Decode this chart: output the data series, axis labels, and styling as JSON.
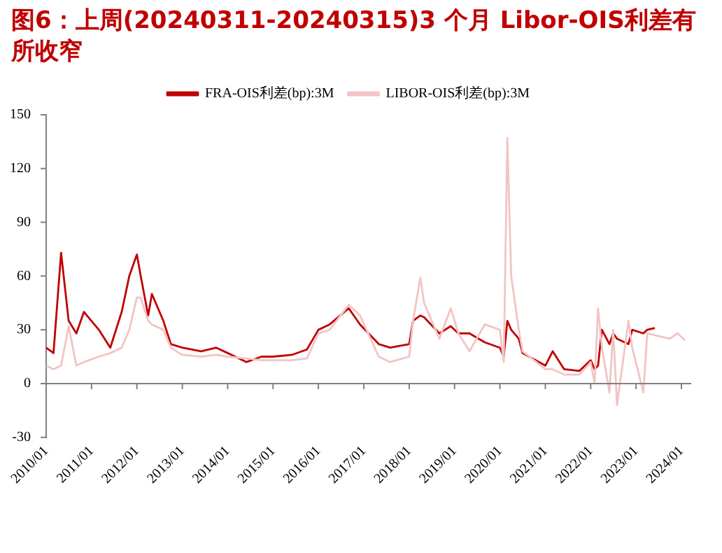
{
  "chart_data": {
    "type": "line",
    "title": "图6：上周(20240311-20240315)3 个月 Libor-OIS利差有所收窄",
    "ylim": [
      -30,
      150
    ],
    "yticks": [
      -30,
      0,
      30,
      60,
      90,
      120,
      150
    ],
    "xlim": [
      "2010-01-01",
      "2024-03-20"
    ],
    "xticks": [
      {
        "value": "2010-01-01",
        "label": "2010/01"
      },
      {
        "value": "2011-01-01",
        "label": "2011/01"
      },
      {
        "value": "2012-01-01",
        "label": "2012/01"
      },
      {
        "value": "2013-01-01",
        "label": "2013/01"
      },
      {
        "value": "2014-01-01",
        "label": "2014/01"
      },
      {
        "value": "2015-01-01",
        "label": "2015/01"
      },
      {
        "value": "2016-01-01",
        "label": "2016/01"
      },
      {
        "value": "2017-01-01",
        "label": "2017/01"
      },
      {
        "value": "2018-01-01",
        "label": "2018/01"
      },
      {
        "value": "2019-01-01",
        "label": "2019/01"
      },
      {
        "value": "2020-01-01",
        "label": "2020/01"
      },
      {
        "value": "2021-01-01",
        "label": "2021/01"
      },
      {
        "value": "2022-01-01",
        "label": "2022/01"
      },
      {
        "value": "2023-01-01",
        "label": "2023/01"
      },
      {
        "value": "2024-01-01",
        "label": "2024/01"
      }
    ],
    "ref_lines": [
      {
        "axis": "y",
        "value": 0
      }
    ],
    "grid": false,
    "legend": "top",
    "marker": "none",
    "line_style": "solid",
    "series": [
      {
        "name": "FRA-OIS利差(bp):3M",
        "color": "#c00000",
        "x": [
          "2010-01",
          "2010-03",
          "2010-05",
          "2010-07",
          "2010-09",
          "2010-11",
          "2011-03",
          "2011-06",
          "2011-09",
          "2011-11",
          "2012-01",
          "2012-02",
          "2012-04",
          "2012-05",
          "2012-08",
          "2012-10",
          "2013-01",
          "2013-06",
          "2013-10",
          "2014-01",
          "2014-06",
          "2014-10",
          "2015-01",
          "2015-06",
          "2015-10",
          "2016-01",
          "2016-04",
          "2016-09",
          "2016-12",
          "2017-05",
          "2017-08",
          "2018-01",
          "2018-02",
          "2018-04",
          "2018-05",
          "2018-09",
          "2018-12",
          "2019-02",
          "2019-05",
          "2019-09",
          "2020-01",
          "2020-02",
          "2020-03",
          "2020-04",
          "2020-06",
          "2020-07",
          "2021-01",
          "2021-03",
          "2021-06",
          "2021-10",
          "2022-01",
          "2022-02",
          "2022-03",
          "2022-04",
          "2022-06",
          "2022-07",
          "2022-08",
          "2022-11",
          "2022-12",
          "2023-03",
          "2023-04",
          "2023-06"
        ],
        "values": [
          20,
          17,
          73,
          35,
          28,
          40,
          30,
          20,
          40,
          60,
          72,
          60,
          38,
          50,
          35,
          22,
          20,
          18,
          20,
          17,
          12,
          15,
          15,
          16,
          19,
          30,
          33,
          42,
          33,
          22,
          20,
          22,
          35,
          38,
          37,
          28,
          32,
          28,
          28,
          23,
          20,
          15,
          35,
          30,
          25,
          17,
          10,
          18,
          8,
          7,
          13,
          8,
          10,
          30,
          22,
          28,
          25,
          22,
          30,
          28,
          30,
          31
        ]
      },
      {
        "name": "LIBOR-OIS利差(bp):3M",
        "color": "#f2c4c4",
        "x": [
          "2010-01",
          "2010-03",
          "2010-05",
          "2010-07",
          "2010-09",
          "2010-11",
          "2011-03",
          "2011-06",
          "2011-09",
          "2011-11",
          "2012-01",
          "2012-02",
          "2012-04",
          "2012-05",
          "2012-08",
          "2012-10",
          "2013-01",
          "2013-06",
          "2013-10",
          "2014-01",
          "2014-06",
          "2014-10",
          "2015-01",
          "2015-06",
          "2015-10",
          "2016-01",
          "2016-04",
          "2016-09",
          "2016-12",
          "2017-05",
          "2017-08",
          "2018-01",
          "2018-02",
          "2018-04",
          "2018-05",
          "2018-09",
          "2018-12",
          "2019-02",
          "2019-05",
          "2019-09",
          "2020-01",
          "2020-02",
          "2020-03",
          "2020-04",
          "2020-06",
          "2020-07",
          "2021-01",
          "2021-03",
          "2021-06",
          "2021-10",
          "2022-01",
          "2022-02",
          "2022-03",
          "2022-04",
          "2022-06",
          "2022-07",
          "2022-08",
          "2022-11",
          "2022-12",
          "2023-03",
          "2023-04",
          "2023-06",
          "2023-10",
          "2023-12",
          "2024-02"
        ],
        "values": [
          10,
          8,
          10,
          32,
          10,
          12,
          15,
          17,
          20,
          30,
          48,
          48,
          35,
          33,
          30,
          20,
          16,
          15,
          16,
          15,
          14,
          13,
          13,
          13,
          14,
          28,
          30,
          44,
          38,
          15,
          12,
          15,
          35,
          59,
          45,
          25,
          42,
          28,
          18,
          33,
          30,
          12,
          137,
          60,
          30,
          18,
          8,
          8,
          5,
          5,
          12,
          0,
          42,
          20,
          -5,
          30,
          -12,
          35,
          20,
          -5,
          28,
          27,
          25,
          28,
          24
        ]
      }
    ]
  }
}
